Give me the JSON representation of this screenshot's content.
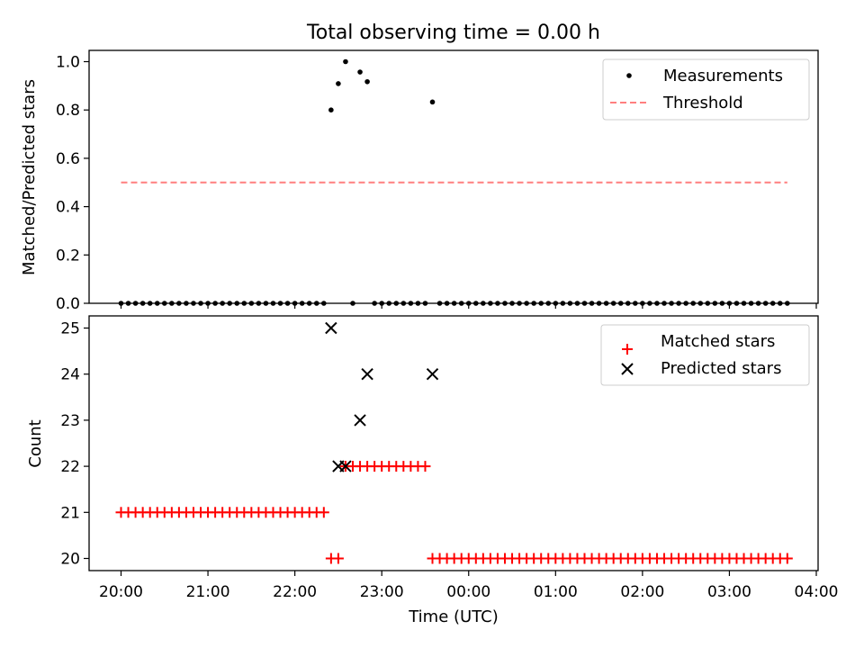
{
  "chart_data": [
    {
      "type": "scatter",
      "title": "Total observing time = 0.00 h",
      "xlabel": "",
      "ylabel": "Matched/Predicted stars",
      "ylim": [
        0.0,
        1.05
      ],
      "yticks": [
        "0.0",
        "0.2",
        "0.4",
        "0.6",
        "0.8",
        "1.0"
      ],
      "xlim": [
        "19:40",
        "04:00"
      ],
      "legend_position": "top-right",
      "series": [
        {
          "name": "Measurements",
          "style": "points",
          "color": "#000000",
          "points": [
            {
              "x": "20:00",
              "y": 0
            },
            {
              "x": "20:05",
              "y": 0
            },
            {
              "x": "20:10",
              "y": 0
            },
            {
              "x": "20:15",
              "y": 0
            },
            {
              "x": "20:20",
              "y": 0
            },
            {
              "x": "20:25",
              "y": 0
            },
            {
              "x": "20:30",
              "y": 0
            },
            {
              "x": "20:35",
              "y": 0
            },
            {
              "x": "20:40",
              "y": 0
            },
            {
              "x": "20:45",
              "y": 0
            },
            {
              "x": "20:50",
              "y": 0
            },
            {
              "x": "20:55",
              "y": 0
            },
            {
              "x": "21:00",
              "y": 0
            },
            {
              "x": "21:05",
              "y": 0
            },
            {
              "x": "21:10",
              "y": 0
            },
            {
              "x": "21:15",
              "y": 0
            },
            {
              "x": "21:20",
              "y": 0
            },
            {
              "x": "21:25",
              "y": 0
            },
            {
              "x": "21:30",
              "y": 0
            },
            {
              "x": "21:35",
              "y": 0
            },
            {
              "x": "21:40",
              "y": 0
            },
            {
              "x": "21:45",
              "y": 0
            },
            {
              "x": "21:50",
              "y": 0
            },
            {
              "x": "21:55",
              "y": 0
            },
            {
              "x": "22:00",
              "y": 0
            },
            {
              "x": "22:05",
              "y": 0
            },
            {
              "x": "22:10",
              "y": 0
            },
            {
              "x": "22:15",
              "y": 0
            },
            {
              "x": "22:20",
              "y": 0
            },
            {
              "x": "22:25",
              "y": 0.8
            },
            {
              "x": "22:30",
              "y": 0.909
            },
            {
              "x": "22:35",
              "y": 1.0
            },
            {
              "x": "22:40",
              "y": 0
            },
            {
              "x": "22:45",
              "y": 0.957
            },
            {
              "x": "22:50",
              "y": 0.917
            },
            {
              "x": "22:55",
              "y": 0
            },
            {
              "x": "23:00",
              "y": 0
            },
            {
              "x": "23:05",
              "y": 0
            },
            {
              "x": "23:10",
              "y": 0
            },
            {
              "x": "23:15",
              "y": 0
            },
            {
              "x": "23:20",
              "y": 0
            },
            {
              "x": "23:25",
              "y": 0
            },
            {
              "x": "23:30",
              "y": 0
            },
            {
              "x": "23:35",
              "y": 0.833
            },
            {
              "x": "23:40",
              "y": 0
            },
            {
              "x": "23:45",
              "y": 0
            },
            {
              "x": "23:50",
              "y": 0
            },
            {
              "x": "23:55",
              "y": 0
            },
            {
              "x": "00:00",
              "y": 0
            },
            {
              "x": "00:05",
              "y": 0
            },
            {
              "x": "00:10",
              "y": 0
            },
            {
              "x": "00:15",
              "y": 0
            },
            {
              "x": "00:20",
              "y": 0
            },
            {
              "x": "00:25",
              "y": 0
            },
            {
              "x": "00:30",
              "y": 0
            },
            {
              "x": "00:35",
              "y": 0
            },
            {
              "x": "00:40",
              "y": 0
            },
            {
              "x": "00:45",
              "y": 0
            },
            {
              "x": "00:50",
              "y": 0
            },
            {
              "x": "00:55",
              "y": 0
            },
            {
              "x": "01:00",
              "y": 0
            },
            {
              "x": "01:05",
              "y": 0
            },
            {
              "x": "01:10",
              "y": 0
            },
            {
              "x": "01:15",
              "y": 0
            },
            {
              "x": "01:20",
              "y": 0
            },
            {
              "x": "01:25",
              "y": 0
            },
            {
              "x": "01:30",
              "y": 0
            },
            {
              "x": "01:35",
              "y": 0
            },
            {
              "x": "01:40",
              "y": 0
            },
            {
              "x": "01:45",
              "y": 0
            },
            {
              "x": "01:50",
              "y": 0
            },
            {
              "x": "01:55",
              "y": 0
            },
            {
              "x": "02:00",
              "y": 0
            },
            {
              "x": "02:05",
              "y": 0
            },
            {
              "x": "02:10",
              "y": 0
            },
            {
              "x": "02:15",
              "y": 0
            },
            {
              "x": "02:20",
              "y": 0
            },
            {
              "x": "02:25",
              "y": 0
            },
            {
              "x": "02:30",
              "y": 0
            },
            {
              "x": "02:35",
              "y": 0
            },
            {
              "x": "02:40",
              "y": 0
            },
            {
              "x": "02:45",
              "y": 0
            },
            {
              "x": "02:50",
              "y": 0
            },
            {
              "x": "02:55",
              "y": 0
            },
            {
              "x": "03:00",
              "y": 0
            },
            {
              "x": "03:05",
              "y": 0
            },
            {
              "x": "03:10",
              "y": 0
            },
            {
              "x": "03:15",
              "y": 0
            },
            {
              "x": "03:20",
              "y": 0
            },
            {
              "x": "03:25",
              "y": 0
            },
            {
              "x": "03:30",
              "y": 0
            },
            {
              "x": "03:35",
              "y": 0
            },
            {
              "x": "03:40",
              "y": 0
            }
          ]
        },
        {
          "name": "Threshold",
          "style": "dashed-line",
          "color": "#ff7f7f",
          "points": [
            {
              "x": "20:00",
              "y": 0.5
            },
            {
              "x": "03:40",
              "y": 0.5
            }
          ]
        }
      ]
    },
    {
      "type": "scatter",
      "title": "",
      "xlabel": "Time (UTC)",
      "ylabel": "Count",
      "ylim": [
        19.7,
        25.3
      ],
      "yticks": [
        "20",
        "21",
        "22",
        "23",
        "24",
        "25"
      ],
      "xlim": [
        "19:40",
        "04:00"
      ],
      "xticks": [
        "20:00",
        "21:00",
        "22:00",
        "23:00",
        "00:00",
        "01:00",
        "02:00",
        "03:00",
        "04:00"
      ],
      "legend_position": "top-right",
      "series": [
        {
          "name": "Matched stars",
          "style": "plus",
          "color": "#ff0000",
          "points": [
            {
              "x": "20:00",
              "y": 21
            },
            {
              "x": "20:05",
              "y": 21
            },
            {
              "x": "20:10",
              "y": 21
            },
            {
              "x": "20:15",
              "y": 21
            },
            {
              "x": "20:20",
              "y": 21
            },
            {
              "x": "20:25",
              "y": 21
            },
            {
              "x": "20:30",
              "y": 21
            },
            {
              "x": "20:35",
              "y": 21
            },
            {
              "x": "20:40",
              "y": 21
            },
            {
              "x": "20:45",
              "y": 21
            },
            {
              "x": "20:50",
              "y": 21
            },
            {
              "x": "20:55",
              "y": 21
            },
            {
              "x": "21:00",
              "y": 21
            },
            {
              "x": "21:05",
              "y": 21
            },
            {
              "x": "21:10",
              "y": 21
            },
            {
              "x": "21:15",
              "y": 21
            },
            {
              "x": "21:20",
              "y": 21
            },
            {
              "x": "21:25",
              "y": 21
            },
            {
              "x": "21:30",
              "y": 21
            },
            {
              "x": "21:35",
              "y": 21
            },
            {
              "x": "21:40",
              "y": 21
            },
            {
              "x": "21:45",
              "y": 21
            },
            {
              "x": "21:50",
              "y": 21
            },
            {
              "x": "21:55",
              "y": 21
            },
            {
              "x": "22:00",
              "y": 21
            },
            {
              "x": "22:05",
              "y": 21
            },
            {
              "x": "22:10",
              "y": 21
            },
            {
              "x": "22:15",
              "y": 21
            },
            {
              "x": "22:20",
              "y": 21
            },
            {
              "x": "22:25",
              "y": 20
            },
            {
              "x": "22:30",
              "y": 20
            },
            {
              "x": "22:35",
              "y": 22
            },
            {
              "x": "22:40",
              "y": 22
            },
            {
              "x": "22:45",
              "y": 22
            },
            {
              "x": "22:50",
              "y": 22
            },
            {
              "x": "22:55",
              "y": 22
            },
            {
              "x": "23:00",
              "y": 22
            },
            {
              "x": "23:05",
              "y": 22
            },
            {
              "x": "23:10",
              "y": 22
            },
            {
              "x": "23:15",
              "y": 22
            },
            {
              "x": "23:20",
              "y": 22
            },
            {
              "x": "23:25",
              "y": 22
            },
            {
              "x": "23:30",
              "y": 22
            },
            {
              "x": "23:35",
              "y": 20
            },
            {
              "x": "23:40",
              "y": 20
            },
            {
              "x": "23:45",
              "y": 20
            },
            {
              "x": "23:50",
              "y": 20
            },
            {
              "x": "23:55",
              "y": 20
            },
            {
              "x": "00:00",
              "y": 20
            },
            {
              "x": "00:05",
              "y": 20
            },
            {
              "x": "00:10",
              "y": 20
            },
            {
              "x": "00:15",
              "y": 20
            },
            {
              "x": "00:20",
              "y": 20
            },
            {
              "x": "00:25",
              "y": 20
            },
            {
              "x": "00:30",
              "y": 20
            },
            {
              "x": "00:35",
              "y": 20
            },
            {
              "x": "00:40",
              "y": 20
            },
            {
              "x": "00:45",
              "y": 20
            },
            {
              "x": "00:50",
              "y": 20
            },
            {
              "x": "00:55",
              "y": 20
            },
            {
              "x": "01:00",
              "y": 20
            },
            {
              "x": "01:05",
              "y": 20
            },
            {
              "x": "01:10",
              "y": 20
            },
            {
              "x": "01:15",
              "y": 20
            },
            {
              "x": "01:20",
              "y": 20
            },
            {
              "x": "01:25",
              "y": 20
            },
            {
              "x": "01:30",
              "y": 20
            },
            {
              "x": "01:35",
              "y": 20
            },
            {
              "x": "01:40",
              "y": 20
            },
            {
              "x": "01:45",
              "y": 20
            },
            {
              "x": "01:50",
              "y": 20
            },
            {
              "x": "01:55",
              "y": 20
            },
            {
              "x": "02:00",
              "y": 20
            },
            {
              "x": "02:05",
              "y": 20
            },
            {
              "x": "02:10",
              "y": 20
            },
            {
              "x": "02:15",
              "y": 20
            },
            {
              "x": "02:20",
              "y": 20
            },
            {
              "x": "02:25",
              "y": 20
            },
            {
              "x": "02:30",
              "y": 20
            },
            {
              "x": "02:35",
              "y": 20
            },
            {
              "x": "02:40",
              "y": 20
            },
            {
              "x": "02:45",
              "y": 20
            },
            {
              "x": "02:50",
              "y": 20
            },
            {
              "x": "02:55",
              "y": 20
            },
            {
              "x": "03:00",
              "y": 20
            },
            {
              "x": "03:05",
              "y": 20
            },
            {
              "x": "03:10",
              "y": 20
            },
            {
              "x": "03:15",
              "y": 20
            },
            {
              "x": "03:20",
              "y": 20
            },
            {
              "x": "03:25",
              "y": 20
            },
            {
              "x": "03:30",
              "y": 20
            },
            {
              "x": "03:35",
              "y": 20
            },
            {
              "x": "03:40",
              "y": 20
            }
          ]
        },
        {
          "name": "Predicted stars",
          "style": "x",
          "color": "#000000",
          "points": [
            {
              "x": "22:25",
              "y": 25
            },
            {
              "x": "22:30",
              "y": 22
            },
            {
              "x": "22:35",
              "y": 22
            },
            {
              "x": "22:45",
              "y": 23
            },
            {
              "x": "22:50",
              "y": 24
            },
            {
              "x": "23:35",
              "y": 24
            }
          ]
        }
      ]
    }
  ]
}
